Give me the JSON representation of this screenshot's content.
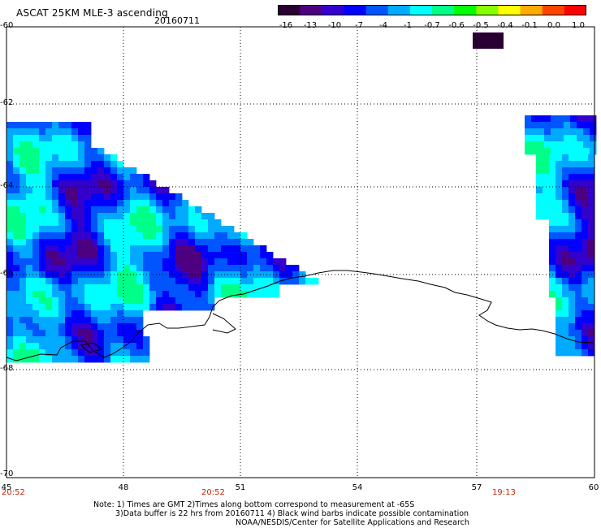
{
  "header": {
    "title": "ASCAT 25KM MLE-3 ascending",
    "date": "20160711"
  },
  "colorbar": {
    "labels": [
      "-16",
      "-13",
      "-10",
      "-7",
      "-4",
      "-1",
      "-0.7",
      "-0.6",
      "-0.5",
      "-0.4",
      "-0.1",
      "0.0",
      "1.0"
    ],
    "colors": [
      "#2a0033",
      "#4d0080",
      "#3300cc",
      "#0000ff",
      "#0055ff",
      "#00aaff",
      "#00ffff",
      "#00ff88",
      "#00ff00",
      "#88ff00",
      "#ffff00",
      "#ffaa00",
      "#ff4400",
      "#ff0000"
    ]
  },
  "axes": {
    "y_labels": [
      "-60",
      "-62",
      "-64",
      "-66",
      "-68",
      "-70"
    ],
    "x_labels": [
      "45",
      "48",
      "51",
      "54",
      "57",
      "60"
    ]
  },
  "times": [
    "20:52",
    "20:52",
    "19:13"
  ],
  "notes": [
    "Note: 1) Times are GMT 2)Times along bottom correspond to measurement at -65S",
    "3)Data buffer is 22 hrs from 20160711 4) Black wind barbs indicate possible contamination",
    "NOAA/NESDIS/Center for Satellite Applications and Research"
  ]
}
